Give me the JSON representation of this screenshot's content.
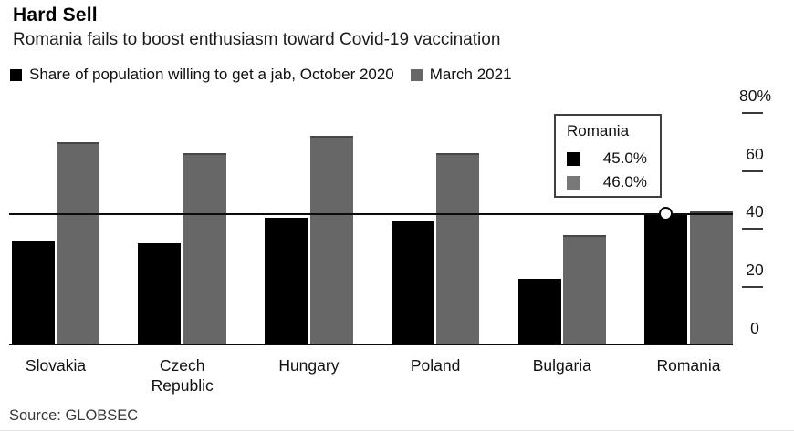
{
  "header": {
    "title": "Hard Sell",
    "subtitle": "Romania fails to boost enthusiasm toward Covid-19 vaccination"
  },
  "legend": {
    "items": [
      {
        "label": "Share of population willing to get a jab, October 2020",
        "color": "#000000"
      },
      {
        "label": "March 2021",
        "color": "#676767"
      }
    ]
  },
  "chart_data": {
    "type": "bar",
    "title": "Hard Sell",
    "subtitle": "Romania fails to boost enthusiasm toward Covid-19 vaccination",
    "categories": [
      "Slovakia",
      "Czech Republic",
      "Hungary",
      "Poland",
      "Bulgaria",
      "Romania"
    ],
    "series": [
      {
        "name": "Share of population willing to get a jab, October 2020",
        "key": "oct-2020",
        "color": "#000000",
        "values": [
          36,
          35,
          44,
          43,
          23,
          45
        ]
      },
      {
        "name": "March 2021",
        "key": "mar-2021",
        "color": "#676767",
        "values": [
          70,
          66,
          72,
          66,
          38,
          46
        ]
      }
    ],
    "ylim": [
      0,
      80
    ],
    "yticks": [
      {
        "value": 0,
        "label": "0"
      },
      {
        "value": 20,
        "label": "20"
      },
      {
        "value": 40,
        "label": "40"
      },
      {
        "value": 60,
        "label": "60"
      },
      {
        "value": 80,
        "label": "80%"
      }
    ],
    "axis_side": "right",
    "grid": false,
    "reference_line_value": 45,
    "highlighted_category": "Romania",
    "legend_position": "top"
  },
  "tooltip": {
    "title": "Romania",
    "rows": [
      {
        "swatch_color": "#000000",
        "value": "45.0%"
      },
      {
        "swatch_color": "#787878",
        "value": "46.0%"
      }
    ]
  },
  "footer": {
    "source": "Source: GLOBSEC"
  },
  "colors": {
    "series_oct_2020": "#000000",
    "series_mar_2021": "#676767",
    "reference_line": "#0c0c0c",
    "axis_line": "#0c0c0c",
    "tick": "#3a3a3a",
    "background": "#ffffff"
  }
}
